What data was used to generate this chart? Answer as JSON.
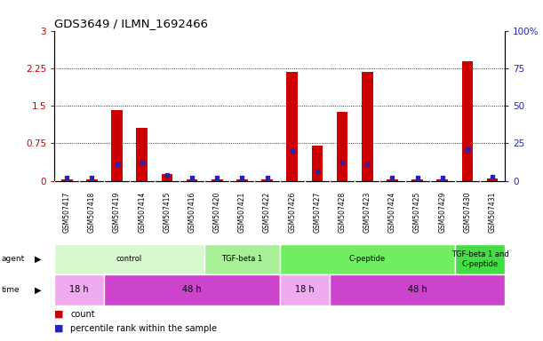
{
  "title": "GDS3649 / ILMN_1692466",
  "samples": [
    "GSM507417",
    "GSM507418",
    "GSM507419",
    "GSM507414",
    "GSM507415",
    "GSM507416",
    "GSM507420",
    "GSM507421",
    "GSM507422",
    "GSM507426",
    "GSM507427",
    "GSM507428",
    "GSM507423",
    "GSM507424",
    "GSM507425",
    "GSM507429",
    "GSM507430",
    "GSM507431"
  ],
  "count_values": [
    0.02,
    0.03,
    1.42,
    1.05,
    0.14,
    0.02,
    0.02,
    0.02,
    0.02,
    2.17,
    0.7,
    1.38,
    2.17,
    0.02,
    0.02,
    0.02,
    2.38,
    0.05
  ],
  "percentile_values": [
    2.0,
    2.0,
    11.0,
    12.0,
    4.0,
    2.0,
    2.0,
    2.0,
    2.0,
    20.0,
    6.0,
    12.0,
    11.0,
    2.0,
    2.0,
    2.0,
    21.0,
    2.5
  ],
  "ylim_left": [
    0,
    3
  ],
  "ylim_right": [
    0,
    100
  ],
  "yticks_left": [
    0,
    0.75,
    1.5,
    2.25,
    3
  ],
  "yticks_right": [
    0,
    25,
    50,
    75,
    100
  ],
  "bar_color": "#cc0000",
  "marker_color": "#2222bb",
  "agent_groups": [
    {
      "label": "control",
      "start": 0,
      "end": 6,
      "color": "#d8f8d0"
    },
    {
      "label": "TGF-beta 1",
      "start": 6,
      "end": 9,
      "color": "#a8f098"
    },
    {
      "label": "C-peptide",
      "start": 9,
      "end": 16,
      "color": "#70ee60"
    },
    {
      "label": "TGF-beta 1 and\nC-peptide",
      "start": 16,
      "end": 18,
      "color": "#44dd44"
    }
  ],
  "time_groups": [
    {
      "label": "18 h",
      "start": 0,
      "end": 2,
      "color": "#f0b0f0"
    },
    {
      "label": "48 h",
      "start": 2,
      "end": 9,
      "color": "#dd55dd"
    },
    {
      "label": "18 h",
      "start": 9,
      "end": 11,
      "color": "#f0b0f0"
    },
    {
      "label": "48 h",
      "start": 11,
      "end": 18,
      "color": "#dd55dd"
    }
  ],
  "legend_count_color": "#cc0000",
  "legend_percentile_color": "#2222bb"
}
